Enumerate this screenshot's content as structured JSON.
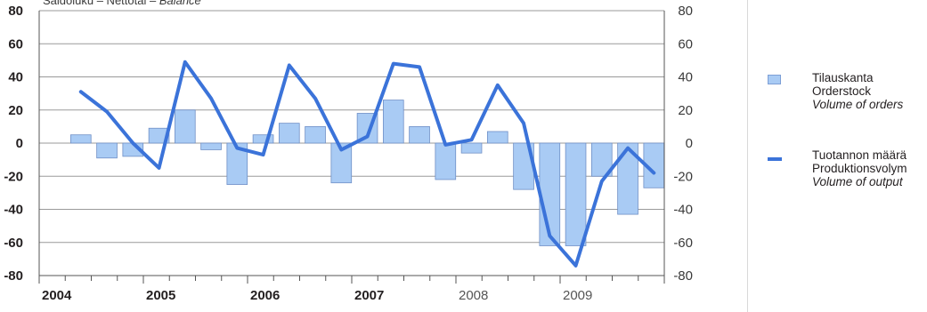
{
  "caption": {
    "prefix": "Saldoluku – Nettotal – ",
    "italic": "Balance"
  },
  "chart_data": {
    "type": "bar",
    "ylim": [
      -80,
      80
    ],
    "yticks": [
      -80,
      -60,
      -40,
      -20,
      0,
      20,
      40,
      60,
      80
    ],
    "ytick_labels": [
      "-80",
      "-60",
      "-40",
      "-20",
      "0",
      "20",
      "40",
      "60",
      "80"
    ],
    "grid": true,
    "years": [
      "2004",
      "2005",
      "2006",
      "2007",
      "2008",
      "2009"
    ],
    "categories": [
      "2004Q1",
      "2004Q2",
      "2004Q3",
      "2004Q4",
      "2005Q1",
      "2005Q2",
      "2005Q3",
      "2005Q4",
      "2006Q1",
      "2006Q2",
      "2006Q3",
      "2006Q4",
      "2007Q1",
      "2007Q2",
      "2007Q3",
      "2007Q4",
      "2008Q1",
      "2008Q2",
      "2008Q3",
      "2008Q4",
      "2009Q1",
      "2009Q2",
      "2009Q3"
    ],
    "series": [
      {
        "name": "Tilauskanta / Orderstock / Volume of orders",
        "kind": "bar",
        "color": "#a9cbf4",
        "values": [
          5,
          -9,
          -8,
          9,
          20,
          -4,
          -25,
          5,
          12,
          10,
          -24,
          18,
          26,
          10,
          -22,
          -6,
          7,
          -28,
          -62,
          -62,
          -20,
          -43,
          -27
        ]
      },
      {
        "name": "Tuotannon määrä / Produktionsvolym / Volume of output",
        "kind": "line",
        "color": "#3b73d9",
        "values": [
          31,
          19,
          0,
          -15,
          49,
          27,
          -3,
          -7,
          47,
          27,
          -4,
          4,
          48,
          46,
          -1,
          2,
          35,
          12,
          -56,
          -74,
          -23,
          -3,
          -18
        ]
      }
    ]
  },
  "legend": {
    "orders": {
      "line1": "Tilauskanta",
      "line2": "Orderstock",
      "line3": "Volume of orders"
    },
    "output": {
      "line1": "Tuotannon määrä",
      "line2": "Produktionsvolym",
      "line3": "Volume of output"
    }
  }
}
